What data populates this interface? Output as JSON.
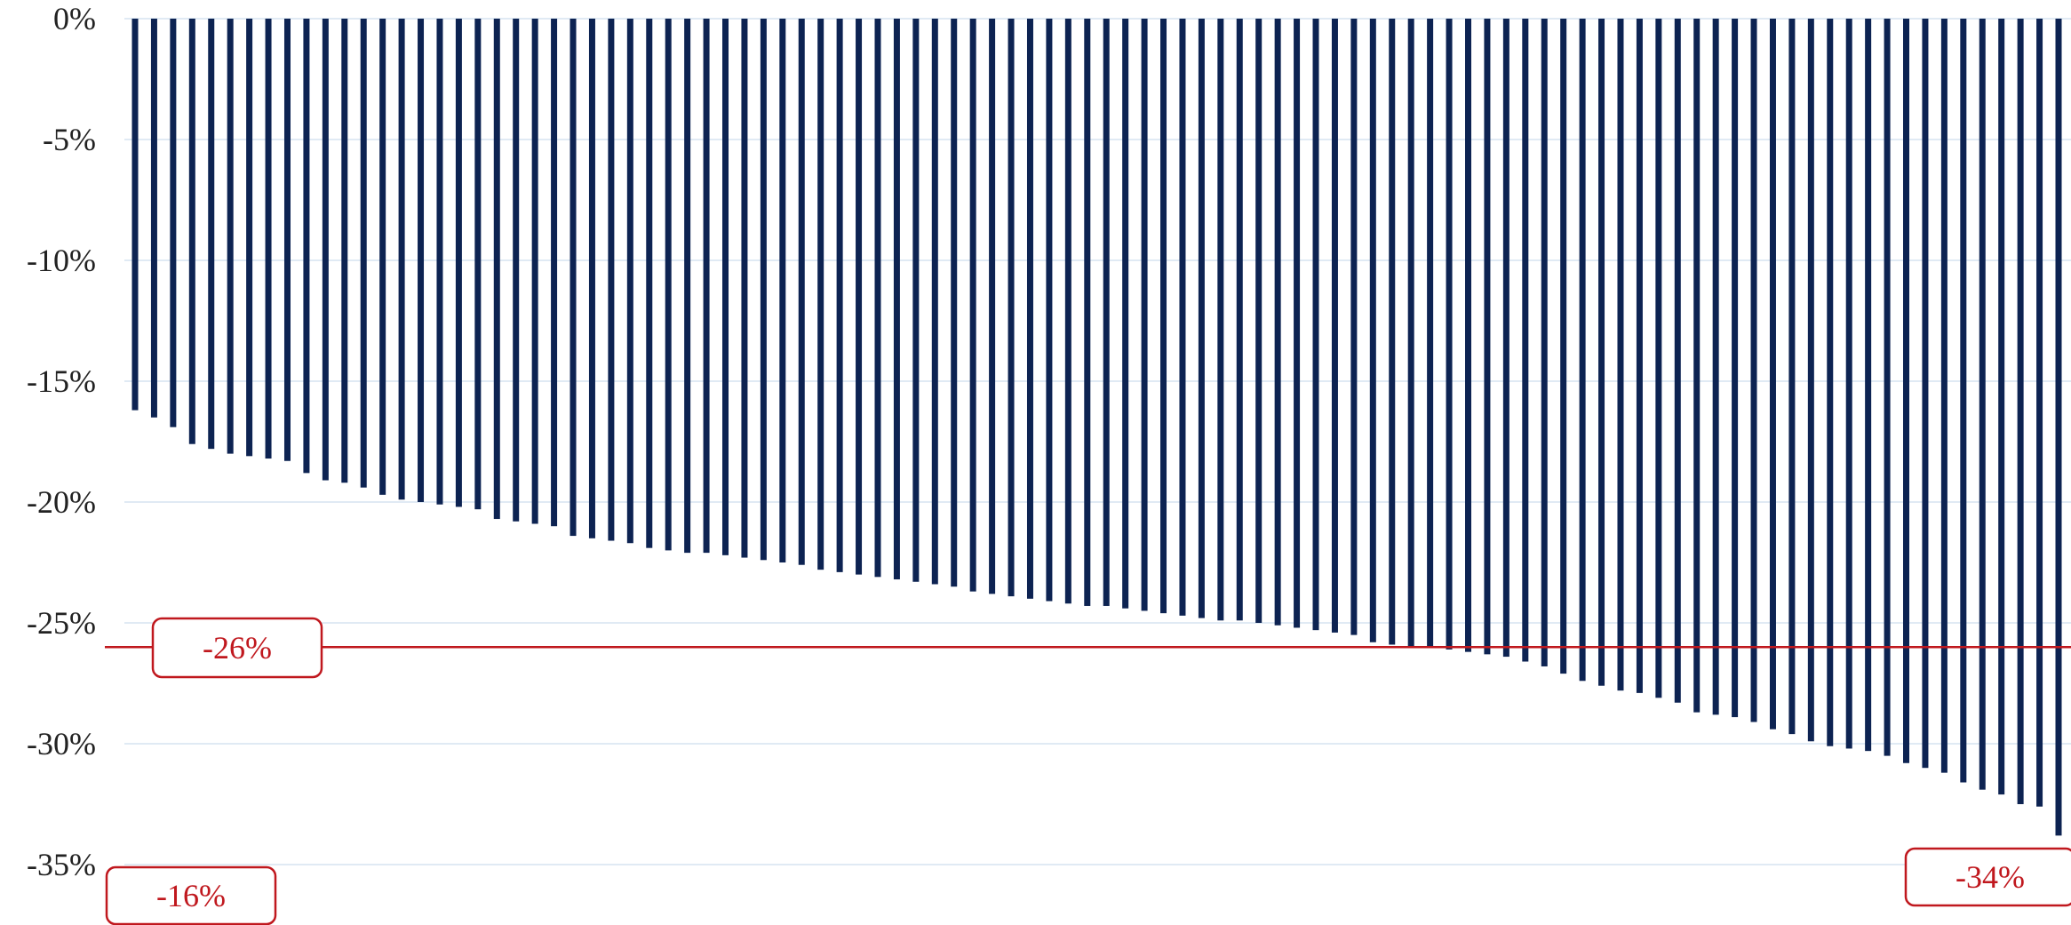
{
  "chart_data": {
    "type": "bar",
    "title": "",
    "xlabel": "",
    "ylabel": "",
    "ylim": [
      -35,
      0
    ],
    "y_ticks": [
      0,
      -5,
      -10,
      -15,
      -20,
      -25,
      -30,
      -35
    ],
    "y_tick_labels": [
      "0%",
      "-5%",
      "-10%",
      "-15%",
      "-20%",
      "-25%",
      "-30%",
      "-35%"
    ],
    "grid": true,
    "series": [
      {
        "values": [
          -16.2,
          -16.5,
          -16.9,
          -17.6,
          -17.8,
          -18.0,
          -18.1,
          -18.2,
          -18.3,
          -18.8,
          -19.1,
          -19.2,
          -19.4,
          -19.7,
          -19.9,
          -20.0,
          -20.1,
          -20.2,
          -20.3,
          -20.7,
          -20.8,
          -20.9,
          -21.0,
          -21.4,
          -21.5,
          -21.6,
          -21.7,
          -21.9,
          -22.0,
          -22.1,
          -22.1,
          -22.2,
          -22.3,
          -22.4,
          -22.5,
          -22.6,
          -22.8,
          -22.9,
          -23.0,
          -23.1,
          -23.2,
          -23.3,
          -23.4,
          -23.5,
          -23.7,
          -23.8,
          -23.9,
          -24.0,
          -24.1,
          -24.2,
          -24.3,
          -24.3,
          -24.4,
          -24.5,
          -24.6,
          -24.7,
          -24.8,
          -24.9,
          -24.9,
          -25.0,
          -25.1,
          -25.2,
          -25.3,
          -25.4,
          -25.5,
          -25.8,
          -25.9,
          -26.0,
          -26.0,
          -26.1,
          -26.2,
          -26.3,
          -26.4,
          -26.6,
          -26.8,
          -27.1,
          -27.4,
          -27.6,
          -27.8,
          -27.9,
          -28.1,
          -28.3,
          -28.7,
          -28.8,
          -28.9,
          -29.1,
          -29.4,
          -29.6,
          -29.9,
          -30.1,
          -30.2,
          -30.3,
          -30.5,
          -30.8,
          -31.0,
          -31.2,
          -31.6,
          -31.9,
          -32.1,
          -32.5,
          -32.6,
          -33.8
        ],
        "color": "#0d2352"
      }
    ],
    "reference_line": {
      "value": -26,
      "label": "-26%",
      "color": "#c0181e"
    },
    "annotations": [
      {
        "label": "-16%",
        "anchor": "first-bar"
      },
      {
        "label": "-34%",
        "anchor": "last-bar"
      }
    ],
    "colors": {
      "bar": "#0d2352",
      "grid": "#d5e3f0",
      "reference": "#c0181e",
      "axis_text": "#222222"
    }
  }
}
